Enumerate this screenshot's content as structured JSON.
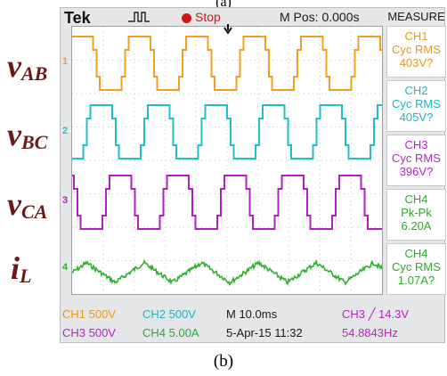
{
  "captions": {
    "top": "(a)",
    "bottom": "(b)"
  },
  "scope": {
    "brand": "Tek",
    "run_state": "Stop",
    "horizontal_position": "M Pos: 0.000s",
    "measure_header": "MEASURE",
    "trigger_icon": "trigger-pulse-icon"
  },
  "waveform_labels": [
    {
      "main": "v",
      "sub": "AB"
    },
    {
      "main": "v",
      "sub": "BC"
    },
    {
      "main": "v",
      "sub": "CA"
    },
    {
      "main": "i",
      "sub": "L"
    }
  ],
  "channel_markers": [
    "1",
    "2",
    "3",
    "4"
  ],
  "measurements": [
    {
      "lines": [
        "CH1",
        "Cyc RMS",
        "403V?"
      ],
      "color": "#e89a1a"
    },
    {
      "lines": [
        "CH2",
        "Cyc RMS",
        "405V?"
      ],
      "color": "#1db6c0"
    },
    {
      "lines": [
        "CH3",
        "Cyc RMS",
        "396V?"
      ],
      "color": "#b428c0"
    },
    {
      "lines": [
        "CH4",
        "Pk-Pk",
        "6.20A"
      ],
      "color": "#2caa2c"
    },
    {
      "lines": [
        "CH4",
        "Cyc RMS",
        "1.07A?"
      ],
      "color": "#2caa2c"
    }
  ],
  "bottom_bar": {
    "ch1_scale": "CH1  500V",
    "ch2_scale": "CH2  500V",
    "ch3_scale": "CH3  500V",
    "ch4_scale": "CH4  5.00A",
    "timebase": "M 10.0ms",
    "date": "5-Apr-15 11:32",
    "trigger": "CH3 ╱ 14.3V",
    "frequency": "54.8843Hz"
  },
  "colors": {
    "ch1": "#f0a020",
    "ch2": "#20c0c8",
    "ch3": "#b020c0",
    "ch4": "#30b030",
    "stop": "#d01818",
    "label": "#6b1a1a"
  }
}
